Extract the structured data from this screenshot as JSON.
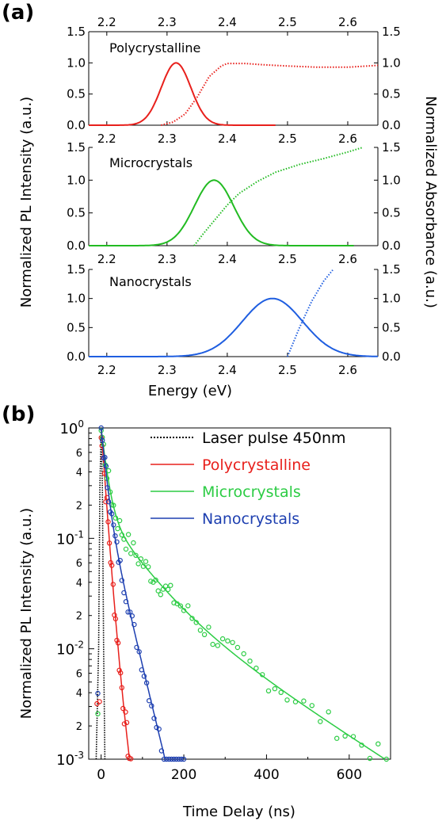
{
  "panel_a": {
    "label": "(a)",
    "xlabel": "Energy (eV)",
    "ylabel_left": "Normalized PL Intensity (a.u.)",
    "ylabel_right": "Normalized Absorbance (a.u.)",
    "xticks": [
      "2.2",
      "2.3",
      "2.4",
      "2.5",
      "2.6"
    ],
    "yticks": [
      "0.0",
      "0.5",
      "1.0",
      "1.5"
    ]
  },
  "panel_b": {
    "label": "(b)",
    "xlabel": "Time Delay (ns)",
    "ylabel": "Normalized PL Intensity (a.u.)",
    "xticks": [
      "0",
      "200",
      "400",
      "600"
    ],
    "ymajor": [
      {
        "base": "10",
        "exp": "0"
      },
      {
        "base": "10",
        "exp": "-1"
      },
      {
        "base": "10",
        "exp": "-2"
      },
      {
        "base": "10",
        "exp": "-3"
      }
    ],
    "yminor": [
      "6",
      "4",
      "2"
    ],
    "legend": [
      "Laser pulse 450nm",
      "Polycrystalline",
      "Microcrystals",
      "Nanocrystals"
    ]
  },
  "colors": {
    "poly": "#e8201c",
    "micro": "#22bb22",
    "micro_b": "#2ccc44",
    "nano": "#1f5ee0",
    "nano_b": "#1d3fb0",
    "laser": "#000000"
  },
  "chart_data": [
    {
      "type": "line",
      "panel": "a-top",
      "series_label": "Polycrystalline",
      "xlim": [
        2.17,
        2.65
      ],
      "ylim": [
        0,
        1.5
      ],
      "top_axis": true,
      "pl": {
        "center": 2.315,
        "sigma": 0.0245,
        "x_range": [
          2.17,
          2.48
        ]
      },
      "absorbance": {
        "x": [
          2.29,
          2.31,
          2.33,
          2.35,
          2.37,
          2.39,
          2.4,
          2.43,
          2.46,
          2.5,
          2.55,
          2.6,
          2.65
        ],
        "y": [
          0.0,
          0.05,
          0.18,
          0.45,
          0.78,
          0.95,
          0.99,
          0.99,
          0.97,
          0.95,
          0.93,
          0.93,
          0.96
        ]
      }
    },
    {
      "type": "line",
      "panel": "a-middle",
      "series_label": "Microcrystals",
      "xlim": [
        2.17,
        2.65
      ],
      "ylim": [
        0,
        1.5
      ],
      "pl": {
        "center": 2.378,
        "sigma": 0.0325,
        "x_range": [
          2.17,
          2.61
        ]
      },
      "absorbance": {
        "x": [
          2.345,
          2.36,
          2.38,
          2.4,
          2.42,
          2.45,
          2.48,
          2.52,
          2.56,
          2.6,
          2.625
        ],
        "y": [
          0.0,
          0.18,
          0.4,
          0.62,
          0.8,
          0.98,
          1.12,
          1.24,
          1.33,
          1.43,
          1.5
        ]
      }
    },
    {
      "type": "line",
      "panel": "a-bottom",
      "series_label": "Nanocrystals",
      "xlim": [
        2.17,
        2.65
      ],
      "ylim": [
        0,
        1.5
      ],
      "pl": {
        "center": 2.475,
        "sigma": 0.05,
        "x_range": [
          2.17,
          2.65
        ]
      },
      "absorbance": {
        "x": [
          2.5,
          2.52,
          2.54,
          2.56,
          2.575
        ],
        "y": [
          0.0,
          0.5,
          0.95,
          1.3,
          1.49
        ]
      }
    },
    {
      "type": "scatter",
      "panel": "b",
      "log_y": true,
      "xlim": [
        -30,
        700
      ],
      "ylim": [
        0.001,
        1
      ],
      "laser": {
        "x": [
          -12,
          -6,
          -3,
          0,
          3,
          6,
          9
        ],
        "y": [
          0.001,
          0.01,
          0.3,
          0.9,
          0.3,
          0.01,
          0.001
        ]
      },
      "series": [
        {
          "name": "Polycrystalline",
          "fit": {
            "t0": 0,
            "a1": 0.95,
            "tau1": 8,
            "a2": 0.06,
            "tau2": 16
          },
          "fit_range": [
            0,
            75
          ],
          "points_x": [
            -10,
            -4,
            0,
            2,
            5,
            8,
            11,
            14,
            17,
            20,
            23,
            26,
            29,
            32,
            35,
            38,
            41,
            44,
            47,
            50,
            53,
            56,
            59,
            62,
            65,
            68,
            72
          ],
          "noise": 0.12
        },
        {
          "name": "Microcrystals",
          "fit": {
            "t0": 0,
            "a1": 0.8,
            "tau1": 12,
            "a2": 0.14,
            "tau2": 70,
            "a3": 0.045,
            "tau3": 180
          },
          "fit_range": [
            0,
            690
          ],
          "points_x": [
            -8,
            0,
            3,
            6,
            10,
            14,
            18,
            22,
            26,
            30,
            35,
            40,
            45,
            50,
            55,
            60,
            66,
            72,
            78,
            84,
            90,
            96,
            102,
            108,
            114,
            120,
            126,
            132,
            138,
            144,
            150,
            156,
            162,
            168,
            176,
            184,
            192,
            200,
            210,
            220,
            230,
            240,
            250,
            260,
            270,
            282,
            294,
            306,
            318,
            330,
            345,
            360,
            375,
            390,
            405,
            420,
            435,
            450,
            470,
            490,
            510,
            530,
            550,
            570,
            590,
            610,
            630,
            650,
            670,
            690
          ],
          "noise": 0.1
        },
        {
          "name": "Nanocrystals",
          "fit": {
            "t0": 0,
            "a1": 0.75,
            "tau1": 10,
            "a2": 0.25,
            "tau2": 28
          },
          "fit_range": [
            0,
            205
          ],
          "points_x": [
            -8,
            0,
            3,
            6,
            9,
            12,
            15,
            18,
            22,
            26,
            30,
            34,
            38,
            42,
            46,
            50,
            55,
            60,
            65,
            70,
            75,
            80,
            86,
            92,
            98,
            104,
            110,
            116,
            122,
            128,
            134,
            140,
            146,
            152,
            158,
            164,
            170,
            176,
            182,
            188,
            194,
            200
          ],
          "noise": 0.08
        }
      ]
    }
  ]
}
